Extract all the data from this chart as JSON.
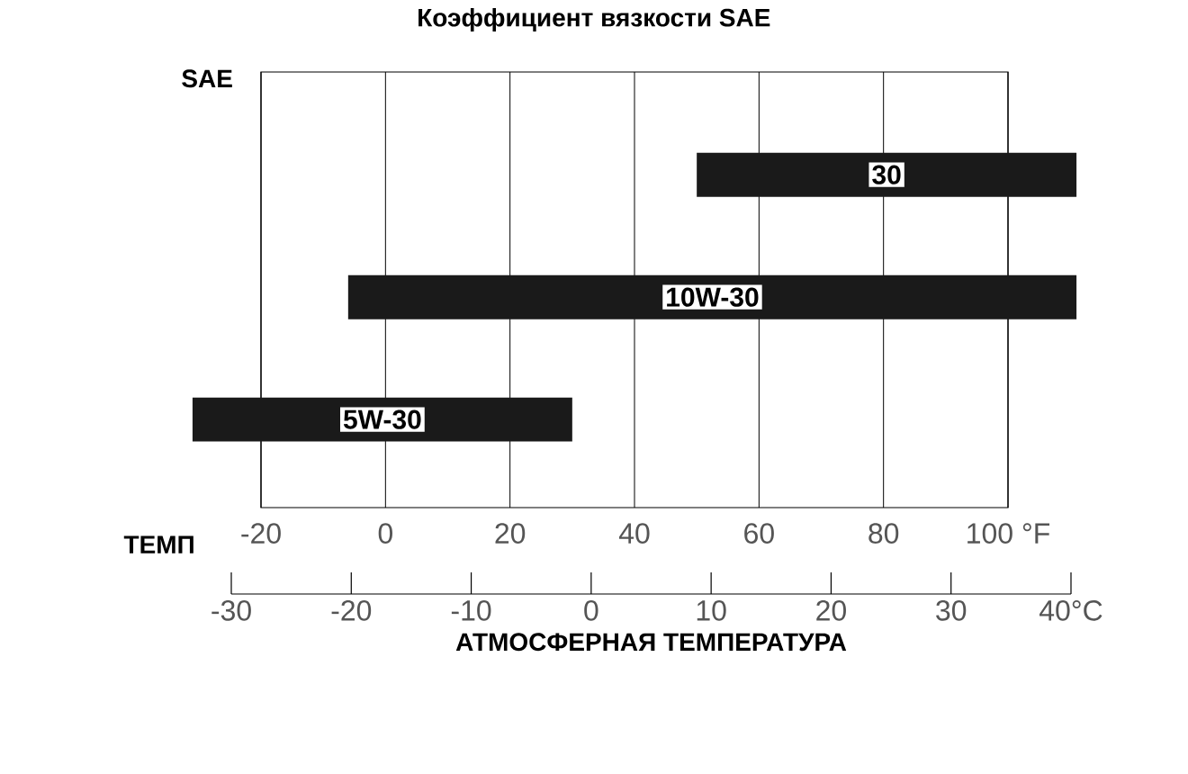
{
  "chart_data": {
    "type": "bar",
    "orientation": "horizontal",
    "title": "Коэффициент вязкости SAE",
    "ylabel": "SAE",
    "xlabel": "ТЕМП",
    "x2label": "АТМОСФЕРНАЯ ТЕМПЕРАТУРА",
    "categories": [
      "30",
      "10W-30",
      "5W-30"
    ],
    "base": [
      50,
      -6,
      -31
    ],
    "values": [
      61,
      117,
      61
    ],
    "color": "#1a1a1a",
    "xlim": [
      -31,
      111
    ],
    "x2lim": [
      -30,
      40
    ],
    "xticks": [
      -20,
      0,
      20,
      40,
      60,
      80,
      {
        "value": 100,
        "label": "100 °F"
      }
    ],
    "x2ticks": [
      -30,
      -20,
      -10,
      0,
      10,
      20,
      30,
      {
        "value": 40,
        "label": "40°C"
      }
    ],
    "grid": "x",
    "tick_labels": "x"
  }
}
